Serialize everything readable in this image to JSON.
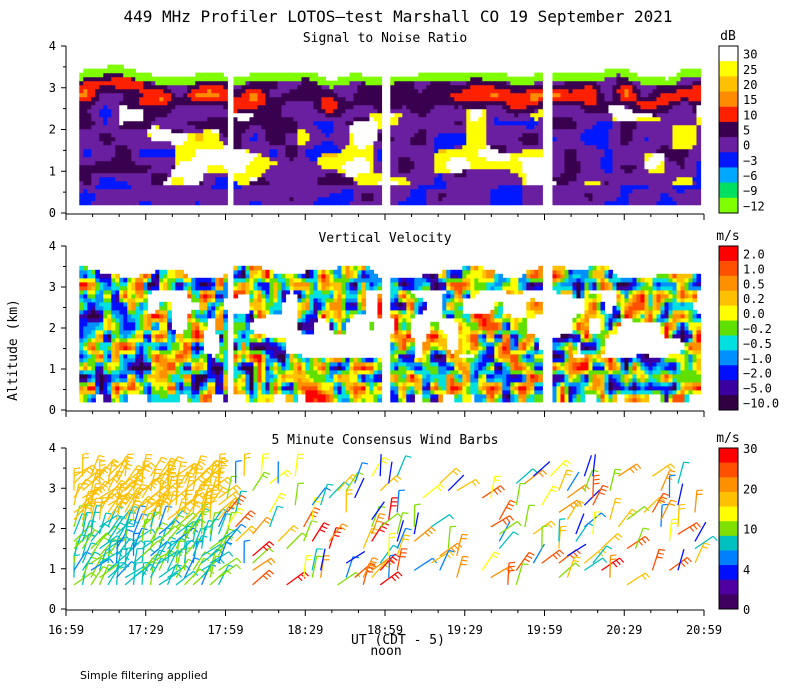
{
  "chart_data": {
    "type": "heatmap",
    "title": "449 MHz Profiler LOTOS–test Marshall CO 19 September 2021",
    "ylabel": "Altitude (km)",
    "xlabel": "UT (CDT - 5)",
    "xnote": "noon",
    "footnote": "Simple filtering applied",
    "x_ticks": [
      "16:59",
      "17:29",
      "17:59",
      "18:29",
      "18:59",
      "19:29",
      "19:59",
      "20:29",
      "20:59"
    ],
    "y_ticks": [
      "0",
      "1",
      "2",
      "3",
      "4"
    ],
    "ylim": [
      0,
      4
    ],
    "xlim_minutes": [
      0,
      240
    ],
    "data_blocks_minutes": [
      [
        5,
        60
      ],
      [
        63,
        118
      ],
      [
        122,
        178
      ],
      [
        183,
        238
      ]
    ],
    "panels": [
      {
        "id": "snr",
        "title": "Signal to Noise Ratio",
        "units": "dB",
        "type": "heatmap",
        "colorbar_labels": [
          "30",
          "25",
          "20",
          "15",
          "10",
          "5",
          "0",
          "−3",
          "−6",
          "−9",
          "−12"
        ],
        "colors": [
          "#ffffff",
          "#ffff00",
          "#ffc000",
          "#ff8c00",
          "#ff2000",
          "#3a0050",
          "#6a1fa0",
          "#0018ff",
          "#00a8ff",
          "#00e060",
          "#80ff00"
        ]
      },
      {
        "id": "vv",
        "title": "Vertical Velocity",
        "units": "m/s",
        "type": "heatmap",
        "colorbar_labels": [
          "2.0",
          "1.0",
          "0.5",
          "0.2",
          "0.0",
          "−0.2",
          "−0.5",
          "−1.0",
          "−2.0",
          "−5.0",
          "−10.0"
        ],
        "colors": [
          "#ff0000",
          "#ff5000",
          "#ff9000",
          "#ffc000",
          "#ffff00",
          "#60e000",
          "#00e0e0",
          "#0090ff",
          "#0010ff",
          "#3a00a0",
          "#300040"
        ]
      },
      {
        "id": "wind",
        "title": "5 Minute Consensus Wind Barbs",
        "units": "m/s",
        "type": "barbs",
        "colorbar_labels": [
          "30",
          "20",
          "10",
          "4",
          "0"
        ],
        "colors": [
          "#ff0000",
          "#ff5000",
          "#ff9000",
          "#ffc000",
          "#ffff00",
          "#80e000",
          "#00c0c0",
          "#0080ff",
          "#0010ff",
          "#5000a0",
          "#400060"
        ]
      }
    ]
  }
}
